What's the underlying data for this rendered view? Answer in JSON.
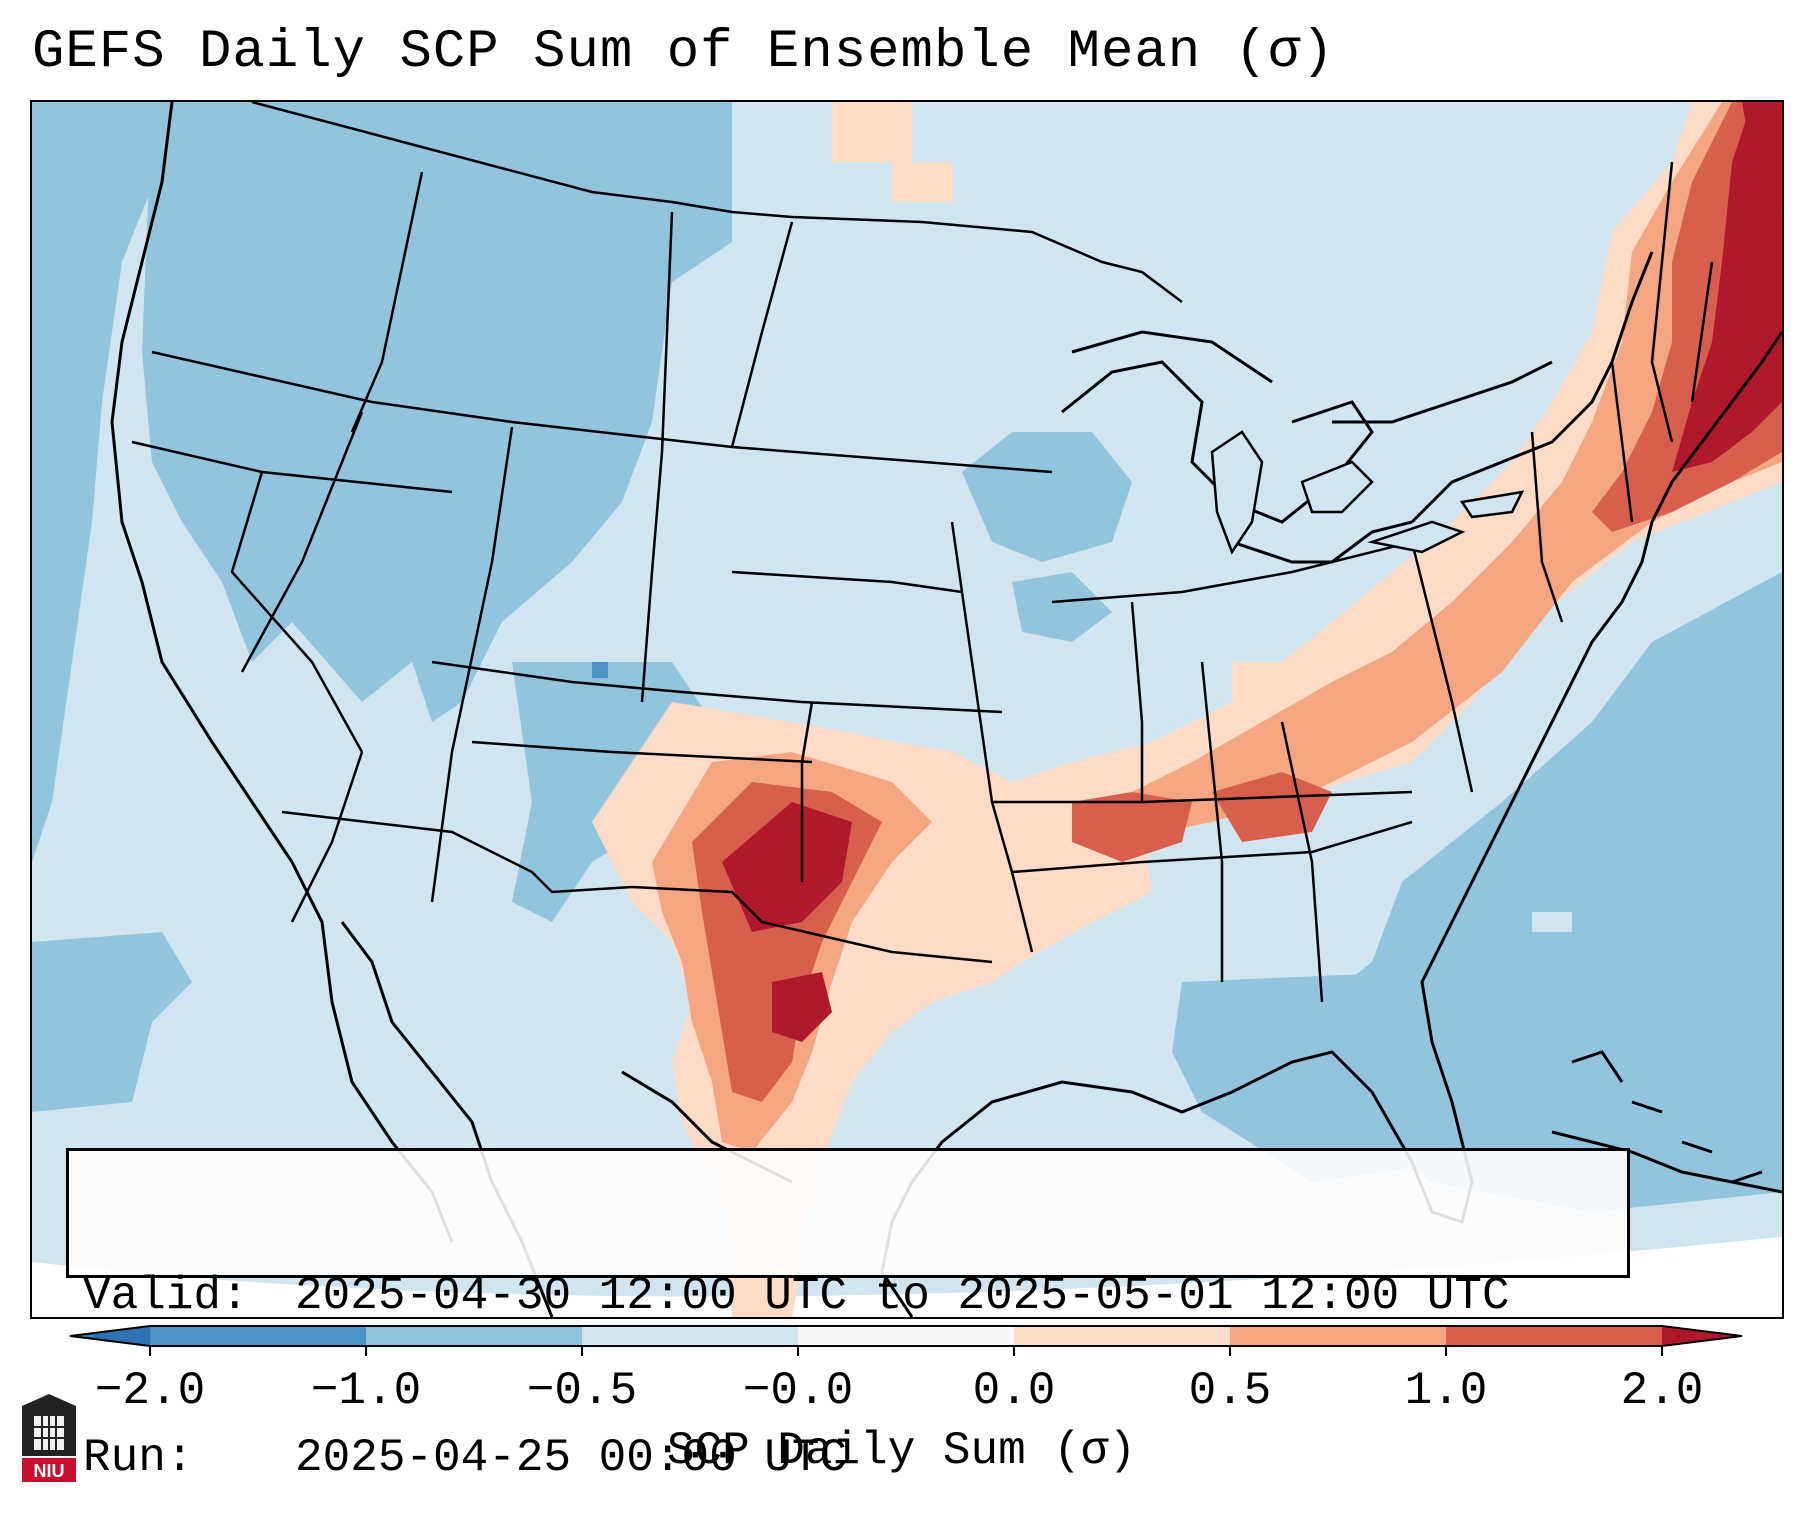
{
  "title": "GEFS Daily SCP Sum of Ensemble Mean (σ)",
  "info": {
    "valid_label": "Valid:",
    "valid_value": "2025-04-30 12:00 UTC to 2025-05-01 12:00 UTC",
    "run_label": "Run:",
    "run_value": "2025-04-25 00:00 UTC"
  },
  "colorbar": {
    "label": "SCP Daily Sum (σ)",
    "ticks": [
      "−2.0",
      "−1.0",
      "−0.5",
      "−0.0",
      "0.0",
      "0.5",
      "1.0",
      "2.0"
    ],
    "colors": {
      "below_min": "#2d72b2",
      "bin1": "#4a93c6",
      "bin2": "#92c4de",
      "bin3": "#d1e5f0",
      "bin4": "#f7f7f7",
      "bin5": "#fddbc7",
      "bin6": "#f4a582",
      "bin7": "#d6604d",
      "above_max": "#b2182b"
    }
  },
  "map": {
    "projection": "Lambert conformal (CONUS)",
    "boundaries": "coastlines, country and state borders"
  },
  "logo": {
    "text": "NIU"
  }
}
